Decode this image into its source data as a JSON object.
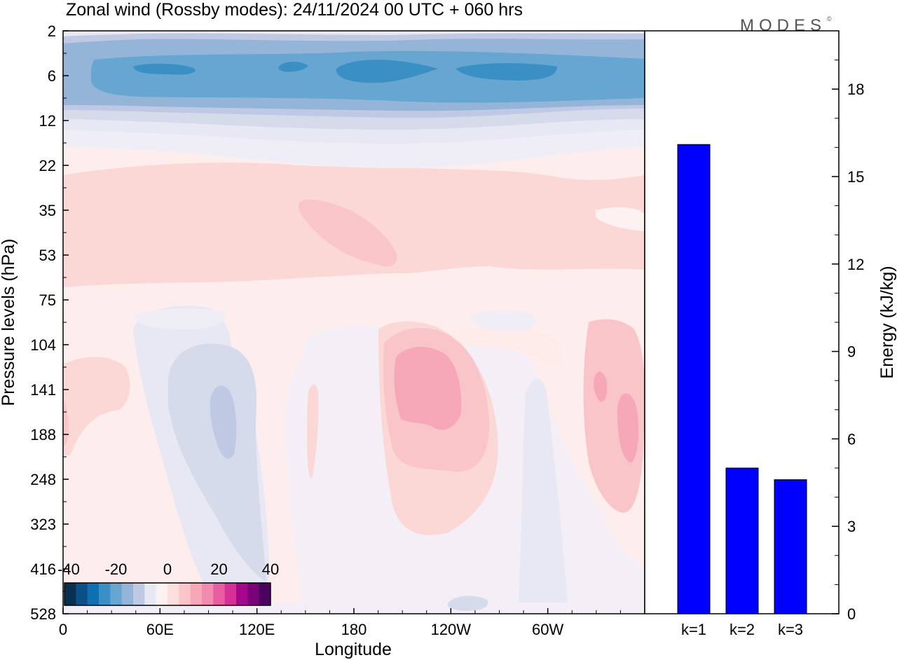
{
  "chart_data": [
    {
      "type": "heatmap",
      "title": "Zonal wind (Rossby modes):  24/11/2024  00 UTC  + 060 hrs",
      "xlabel": "Longitude",
      "ylabel": "Pressure levels (hPa)",
      "x_ticklabels": [
        "0",
        "60E",
        "120E",
        "180",
        "120W",
        "60W"
      ],
      "y_ticklabels": [
        "2",
        "6",
        "12",
        "22",
        "35",
        "53",
        "75",
        "104",
        "141",
        "188",
        "248",
        "323",
        "416",
        "528"
      ],
      "colorbar": {
        "ticklabels": [
          "-40",
          "-20",
          "0",
          "20",
          "40"
        ],
        "levels": [
          -40,
          -35,
          -30,
          -25,
          -20,
          -15,
          -10,
          -5,
          0,
          5,
          10,
          15,
          20,
          25,
          30,
          35,
          40
        ],
        "colors": [
          "#08304f",
          "#0a4f86",
          "#0e70b0",
          "#3a8fc4",
          "#66a6d0",
          "#94b5d8",
          "#c0c9e3",
          "#e7e8f3",
          "#fdf1f2",
          "#fbdedd",
          "#f9c5c9",
          "#f7a8b8",
          "#f28bb0",
          "#e95ea2",
          "#d43095",
          "#a5078a",
          "#7a0277",
          "#4a0460"
        ]
      },
      "features": [
        {
          "desc": "easterly jet",
          "level_hPa": 6,
          "value": -25
        },
        {
          "desc": "westerly maxima",
          "level_hPa": 141,
          "value": 15
        }
      ]
    },
    {
      "type": "bar",
      "categories": [
        "k=1",
        "k=2",
        "k=3"
      ],
      "values": [
        16.1,
        5.0,
        4.6
      ],
      "ylabel": "Energy (kJ/kg)",
      "ylim": [
        0,
        20
      ],
      "yticks": [
        0,
        3,
        6,
        9,
        12,
        15,
        18
      ],
      "bar_color": "#0000ff"
    }
  ],
  "logo": "MODES"
}
